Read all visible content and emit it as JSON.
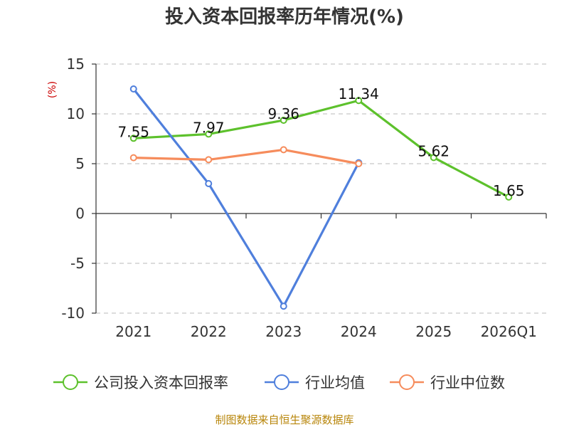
{
  "source_text": "制图数据来自恒生聚源数据库",
  "chart_data": {
    "type": "line",
    "title": "投入资本回报率历年情况(%)",
    "ylabel": "(%)",
    "xlabel": "",
    "categories": [
      "2021",
      "2022",
      "2023",
      "2024",
      "2025",
      "2026Q1"
    ],
    "ylim": [
      -10,
      15
    ],
    "yticks": [
      15,
      10,
      5,
      0,
      -5,
      -10
    ],
    "grid": true,
    "legend_position": "bottom",
    "series": [
      {
        "name": "公司投入资本回报率",
        "color": "#5dc12c",
        "values": [
          7.55,
          7.97,
          9.36,
          11.34,
          5.62,
          1.65
        ],
        "labels": [
          "7.55",
          "7.97",
          "9.36",
          "11.34",
          "5.62",
          "1.65"
        ]
      },
      {
        "name": "行业均值",
        "color": "#4f7fdc",
        "values": [
          12.5,
          3.0,
          -9.3,
          5.1,
          null,
          null
        ]
      },
      {
        "name": "行业中位数",
        "color": "#f68c5c",
        "values": [
          5.6,
          5.4,
          6.4,
          5.0,
          null,
          null
        ]
      }
    ]
  }
}
